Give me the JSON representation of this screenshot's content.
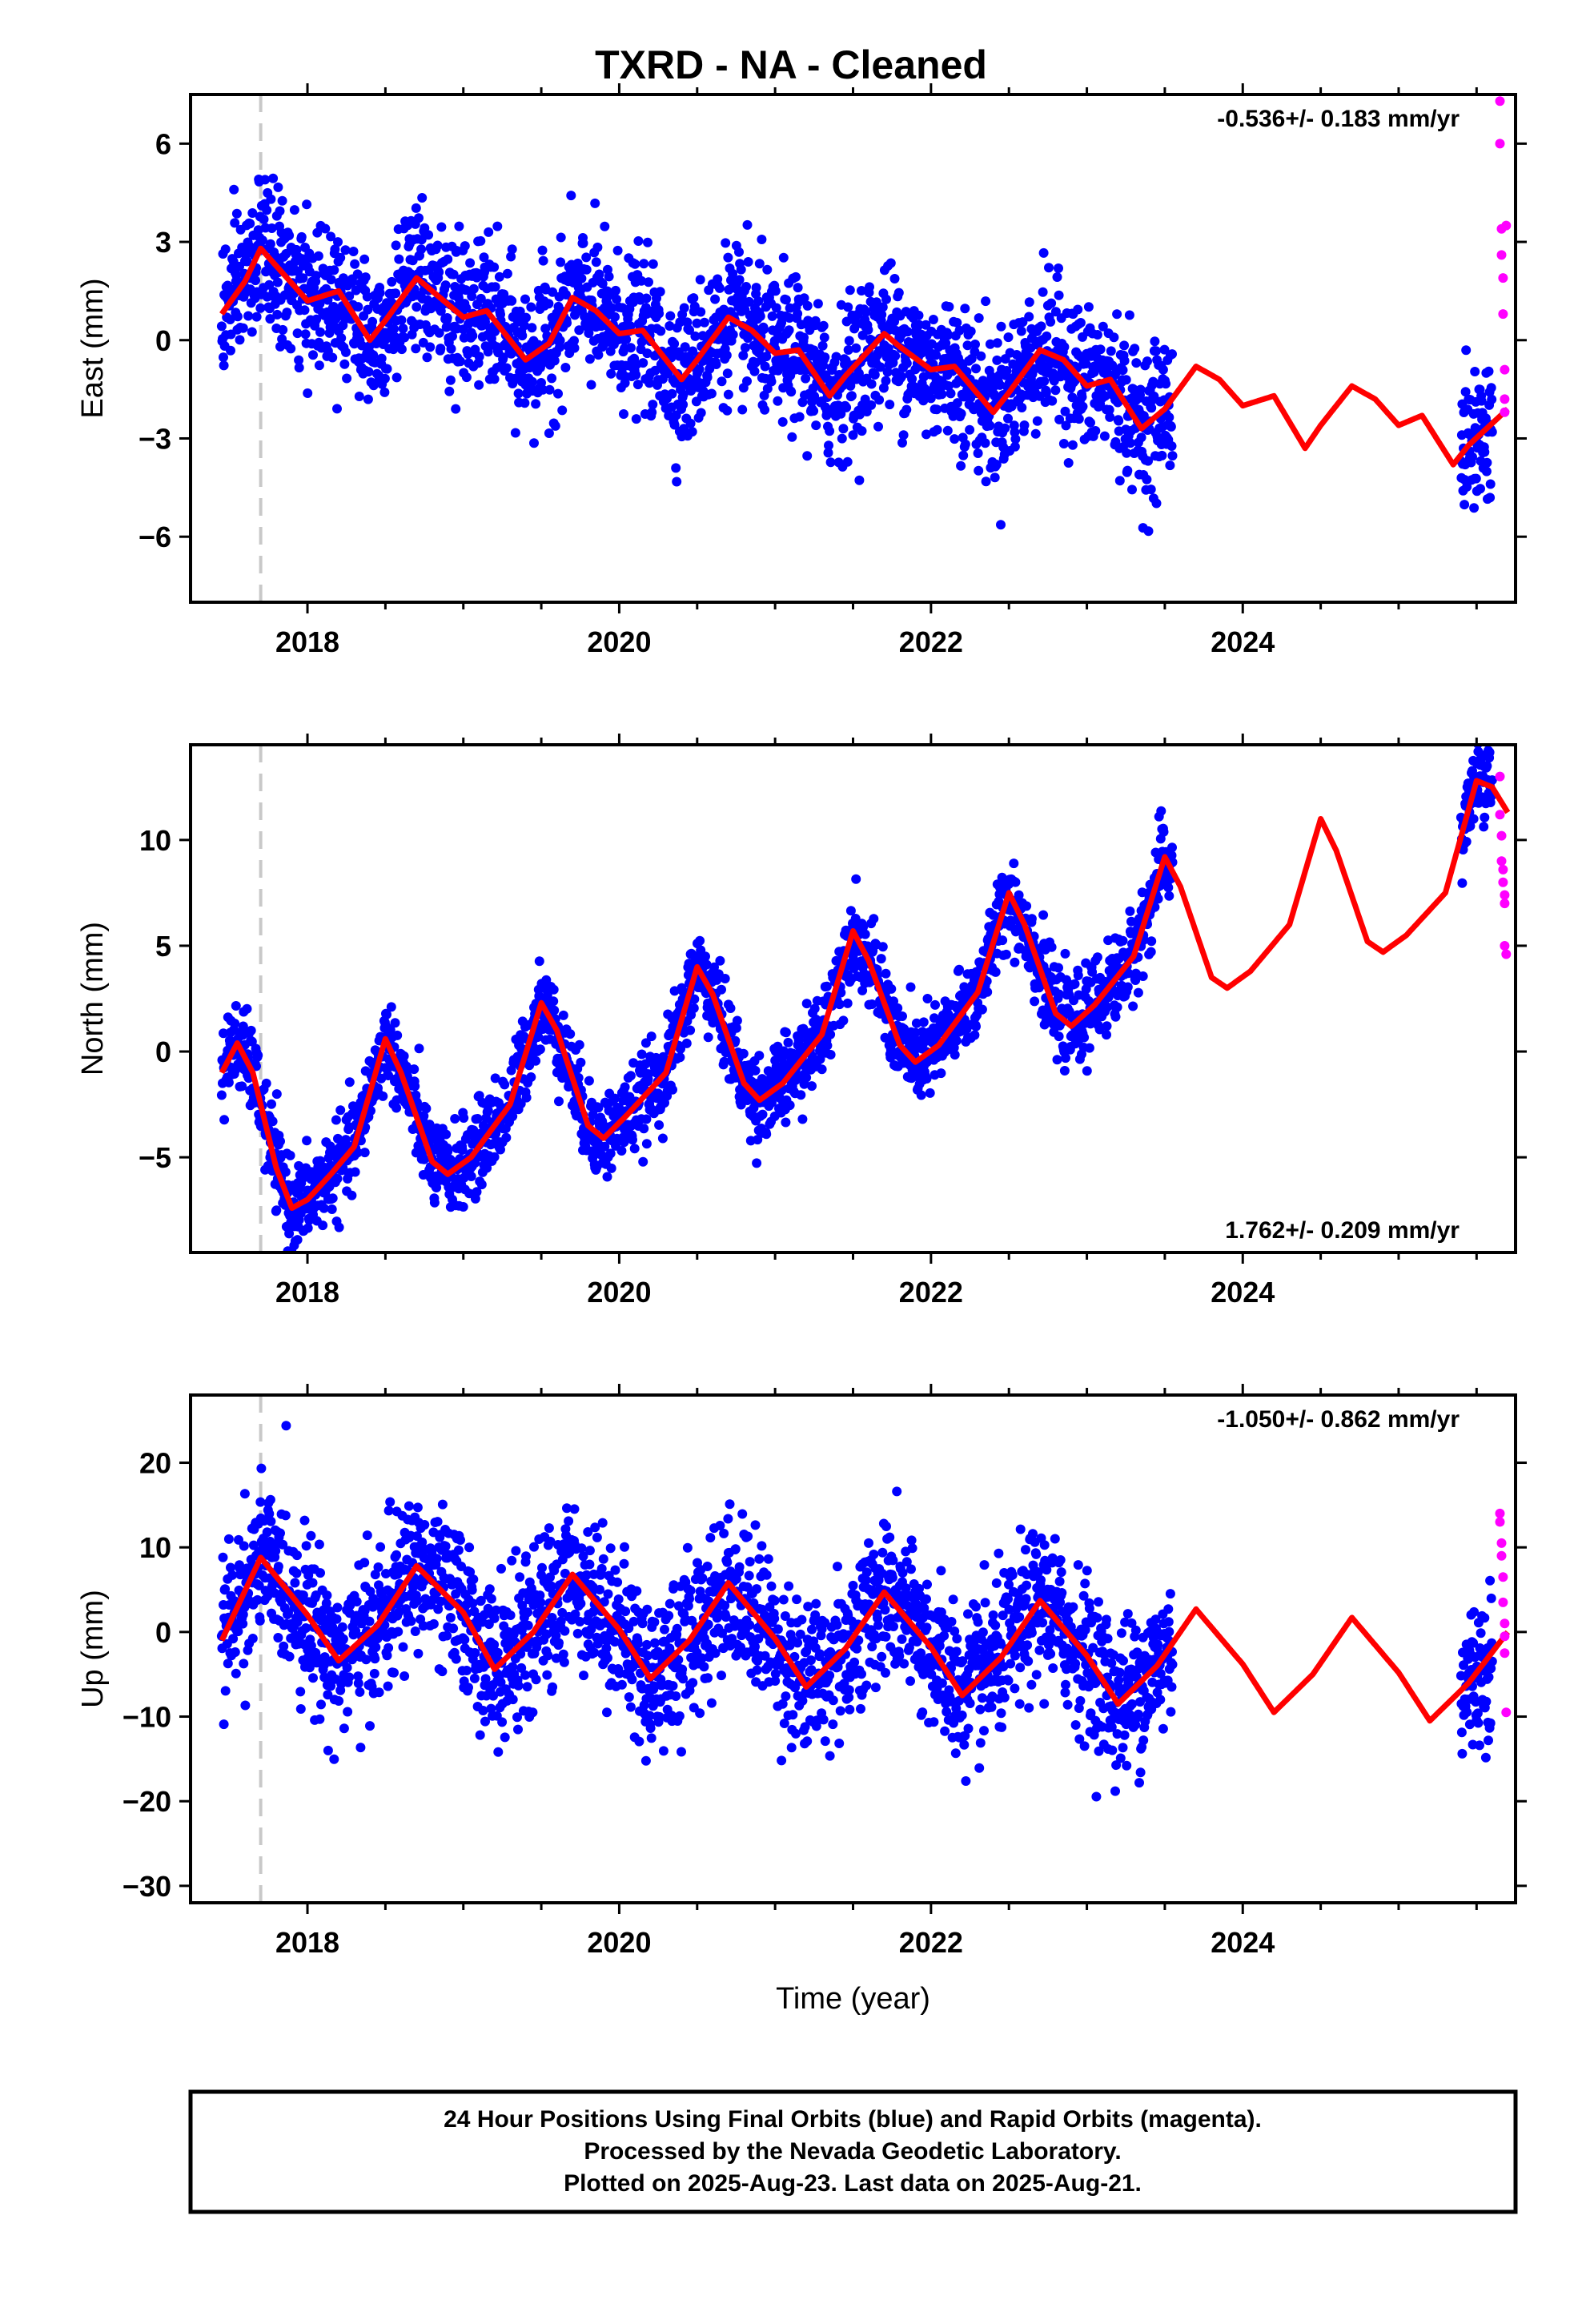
{
  "figure": {
    "title": "TXRD  - NA - Cleaned",
    "x_axis_label": "Time (year)",
    "footer": [
      "24 Hour Positions Using Final Orbits (blue) and Rapid Orbits (magenta).",
      "Processed by the Nevada Geodetic Laboratory.",
      "Plotted on 2025-Aug-23. Last data on 2025-Aug-21."
    ]
  },
  "colors": {
    "final_orbits": "#0000ff",
    "rapid_orbits": "#ff00ff",
    "model": "#ff0000",
    "reference_line": "#c8c8c8"
  },
  "chart_data": [
    {
      "type": "scatter",
      "ylabel": "East (mm)",
      "rate": "-0.536+/- 0.183 mm/yr",
      "rate_position": "top-right",
      "xlim": [
        2017.25,
        2025.75
      ],
      "ylim": [
        -8,
        7.5
      ],
      "xticks": [
        2018,
        2020,
        2022,
        2024
      ],
      "yticks": [
        -6,
        -3,
        0,
        3,
        6
      ],
      "reference_time": 2017.7,
      "grid": false,
      "model": {
        "name": "fit",
        "x": [
          2017.45,
          2017.6,
          2017.7,
          2017.85,
          2018.0,
          2018.2,
          2018.4,
          2018.5,
          2018.7,
          2018.85,
          2019.0,
          2019.15,
          2019.4,
          2019.55,
          2019.7,
          2019.85,
          2020.0,
          2020.15,
          2020.4,
          2020.5,
          2020.7,
          2020.85,
          2021.0,
          2021.15,
          2021.35,
          2021.45,
          2021.7,
          2021.8,
          2022.0,
          2022.15,
          2022.4,
          2022.5,
          2022.7,
          2022.85,
          2023.0,
          2023.15,
          2023.35,
          2023.5,
          2023.7,
          2023.85,
          2024.0,
          2024.2,
          2024.4,
          2024.5,
          2024.7,
          2024.85,
          2025.0,
          2025.15,
          2025.35,
          2025.45,
          2025.7
        ],
        "y": [
          0.8,
          1.8,
          2.8,
          2.0,
          1.2,
          1.5,
          0.0,
          0.6,
          1.9,
          1.3,
          0.7,
          0.9,
          -0.6,
          -0.1,
          1.3,
          0.9,
          0.2,
          0.3,
          -1.2,
          -0.6,
          0.7,
          0.3,
          -0.4,
          -0.3,
          -1.7,
          -1.1,
          0.2,
          -0.2,
          -0.9,
          -0.8,
          -2.2,
          -1.6,
          -0.3,
          -0.6,
          -1.4,
          -1.2,
          -2.7,
          -2.1,
          -0.8,
          -1.2,
          -2.0,
          -1.7,
          -3.3,
          -2.6,
          -1.4,
          -1.8,
          -2.6,
          -2.3,
          -3.8,
          -3.2,
          -2.1
        ]
      },
      "final_orbits": {
        "start": 2017.45,
        "end": 2023.55,
        "resume": 2025.4,
        "stop": 2025.6,
        "rate_mm_per_yr": -0.536,
        "annual_amplitude": 1.2,
        "noise": 1.1
      },
      "rapid_orbits": {
        "x": [
          2025.65,
          2025.65,
          2025.66,
          2025.66,
          2025.67,
          2025.67,
          2025.68,
          2025.68,
          2025.68,
          2025.69
        ],
        "y": [
          7.3,
          6.0,
          3.4,
          2.6,
          1.9,
          0.8,
          -0.9,
          -1.8,
          -2.2,
          3.5
        ]
      }
    },
    {
      "type": "scatter",
      "ylabel": "North (mm)",
      "rate": "1.762+/- 0.209 mm/yr",
      "rate_position": "bottom-right",
      "xlim": [
        2017.25,
        2025.75
      ],
      "ylim": [
        -9.5,
        14.5
      ],
      "xticks": [
        2018,
        2020,
        2022,
        2024
      ],
      "yticks": [
        -5,
        0,
        5,
        10
      ],
      "reference_time": 2017.7,
      "grid": false,
      "model": {
        "name": "fit",
        "x": [
          2017.45,
          2017.55,
          2017.65,
          2017.8,
          2017.9,
          2018.0,
          2018.15,
          2018.3,
          2018.5,
          2018.6,
          2018.8,
          2018.9,
          2019.05,
          2019.3,
          2019.5,
          2019.6,
          2019.8,
          2019.9,
          2020.05,
          2020.3,
          2020.5,
          2020.6,
          2020.8,
          2020.9,
          2021.05,
          2021.3,
          2021.5,
          2021.6,
          2021.8,
          2021.9,
          2022.05,
          2022.3,
          2022.5,
          2022.6,
          2022.8,
          2022.9,
          2023.05,
          2023.3,
          2023.5,
          2023.6,
          2023.8,
          2023.9,
          2024.05,
          2024.3,
          2024.5,
          2024.6,
          2024.8,
          2024.9,
          2025.05,
          2025.3,
          2025.5,
          2025.6,
          2025.7
        ],
        "y": [
          -1.0,
          0.4,
          -1.0,
          -5.5,
          -7.4,
          -7.0,
          -5.8,
          -4.5,
          0.6,
          -1.0,
          -5.2,
          -5.8,
          -5.0,
          -2.5,
          2.3,
          1.0,
          -3.5,
          -4.1,
          -3.0,
          -1.0,
          4.0,
          2.7,
          -1.5,
          -2.3,
          -1.5,
          0.8,
          5.7,
          4.3,
          0.3,
          -0.5,
          0.3,
          2.8,
          7.5,
          6.0,
          1.8,
          1.2,
          2.2,
          4.5,
          9.2,
          7.8,
          3.5,
          3.0,
          3.8,
          6.0,
          11.0,
          9.5,
          5.2,
          4.7,
          5.5,
          7.5,
          12.8,
          12.5,
          11.3
        ]
      },
      "final_orbits": {
        "start": 2017.45,
        "end": 2023.55,
        "resume": 2025.4,
        "stop": 2025.6,
        "rate_mm_per_yr": 1.762,
        "annual_amplitude": 3.8,
        "noise": 1.0
      },
      "rapid_orbits": {
        "x": [
          2025.65,
          2025.65,
          2025.66,
          2025.66,
          2025.67,
          2025.67,
          2025.68,
          2025.68,
          2025.68,
          2025.69
        ],
        "y": [
          13.0,
          11.2,
          10.2,
          9.0,
          8.6,
          8.0,
          7.4,
          7.0,
          5.0,
          4.6
        ]
      }
    },
    {
      "type": "scatter",
      "ylabel": "Up (mm)",
      "rate": "-1.050+/- 0.862 mm/yr",
      "rate_position": "top-right",
      "xlim": [
        2017.25,
        2025.75
      ],
      "ylim": [
        -32,
        28
      ],
      "xticks": [
        2018,
        2020,
        2022,
        2024
      ],
      "yticks": [
        -30,
        -20,
        -10,
        0,
        10,
        20
      ],
      "reference_time": 2017.7,
      "grid": false,
      "model": {
        "name": "fit",
        "x": [
          2017.45,
          2017.7,
          2018.0,
          2018.2,
          2018.45,
          2018.7,
          2019.0,
          2019.2,
          2019.45,
          2019.7,
          2020.0,
          2020.2,
          2020.45,
          2020.7,
          2021.0,
          2021.2,
          2021.45,
          2021.7,
          2022.0,
          2022.2,
          2022.45,
          2022.7,
          2023.0,
          2023.2,
          2023.45,
          2023.7,
          2024.0,
          2024.2,
          2024.45,
          2024.7,
          2025.0,
          2025.2,
          2025.45,
          2025.7
        ],
        "y": [
          -1.0,
          8.8,
          2.0,
          -3.4,
          0.8,
          7.8,
          2.3,
          -4.4,
          0.0,
          6.8,
          0.3,
          -5.5,
          -1.0,
          5.8,
          -0.8,
          -6.5,
          -2.0,
          4.7,
          -1.8,
          -7.5,
          -3.0,
          3.7,
          -2.8,
          -8.5,
          -4.0,
          2.7,
          -3.8,
          -9.5,
          -5.0,
          1.7,
          -4.8,
          -10.5,
          -6.0,
          0.0
        ]
      },
      "final_orbits": {
        "start": 2017.45,
        "end": 2023.55,
        "resume": 2025.4,
        "stop": 2025.6,
        "rate_mm_per_yr": -1.05,
        "annual_amplitude": 6.0,
        "noise": 4.5
      },
      "rapid_orbits": {
        "x": [
          2025.65,
          2025.65,
          2025.66,
          2025.66,
          2025.67,
          2025.67,
          2025.68,
          2025.68,
          2025.68,
          2025.69
        ],
        "y": [
          14.0,
          13.0,
          10.5,
          9.0,
          6.5,
          3.5,
          1.0,
          -0.5,
          -2.5,
          -9.5
        ]
      }
    }
  ]
}
